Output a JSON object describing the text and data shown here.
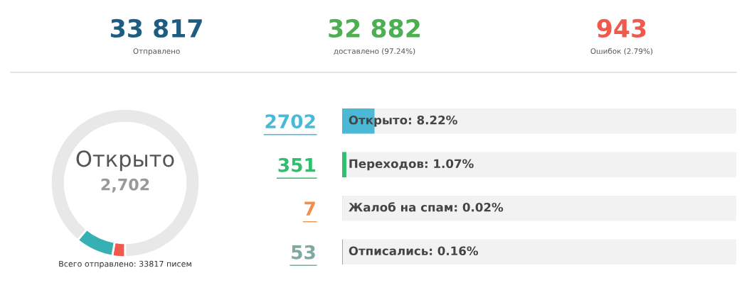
{
  "chart_data": [
    {
      "type": "other",
      "annotations": [
        "33 817",
        "Отправлено",
        "32 882",
        "доставлено (97.24%)",
        "943",
        "Ошибок (2.79%)"
      ],
      "colors": [
        "#1d5d82",
        "#4caf50",
        "#ef5a4c"
      ]
    },
    {
      "type": "donut",
      "title": "Открыто",
      "subtitle": "2,702",
      "categories": [
        null,
        null,
        null
      ],
      "values": [
        2.79,
        8.22,
        88.99
      ],
      "colors": [
        "#ef5a4c",
        "#36b0b3",
        "#e8e8e8"
      ],
      "annotations": [
        "Всего отправлено: 33817 писем"
      ]
    },
    {
      "type": "bar",
      "orientation": "horizontal",
      "categories": [
        "2702",
        "351",
        "7",
        "53"
      ],
      "values": [
        8.22,
        1.07,
        0.02,
        0.16
      ],
      "colors": [
        "#4bb8d6",
        "#2fbf71",
        "#f0904a",
        "#7fa8a0"
      ],
      "value_labels": [
        "Открыто: 8.22%",
        "Переходов: 1.07%",
        "Жалоб на спам: 0.02%",
        "Отписались: 0.16%"
      ],
      "xlim": [
        0,
        100
      ],
      "tick_labels": "y"
    }
  ]
}
